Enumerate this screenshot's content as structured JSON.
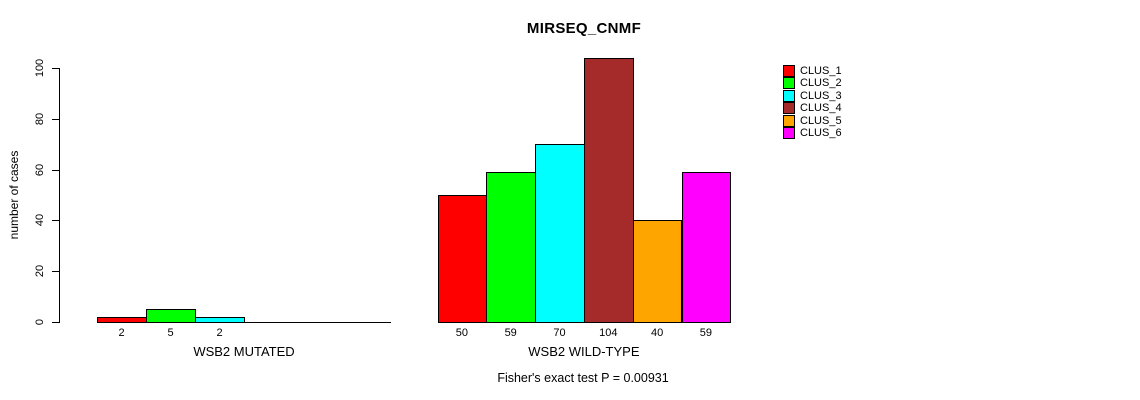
{
  "chart_data": {
    "type": "bar",
    "title": "MIRSEQ_CNMF",
    "ylabel": "number of cases",
    "ylim": [
      0,
      100
    ],
    "yticks": [
      0,
      20,
      40,
      60,
      80,
      100
    ],
    "grid": false,
    "legend_position": "right",
    "footnote": "Fisher's exact test P = 0.00931",
    "series": [
      {
        "name": "CLUS_1",
        "color": "#FF0000"
      },
      {
        "name": "CLUS_2",
        "color": "#00FF00"
      },
      {
        "name": "CLUS_3",
        "color": "#00FFFF"
      },
      {
        "name": "CLUS_4",
        "color": "#A52A2A"
      },
      {
        "name": "CLUS_5",
        "color": "#FFA500"
      },
      {
        "name": "CLUS_6",
        "color": "#FF00FF"
      }
    ],
    "groups": [
      {
        "label": "WSB2 MUTATED",
        "values": [
          2,
          5,
          2,
          0,
          0,
          0
        ]
      },
      {
        "label": "WSB2 WILD-TYPE",
        "values": [
          50,
          59,
          70,
          104,
          40,
          59
        ]
      }
    ]
  }
}
